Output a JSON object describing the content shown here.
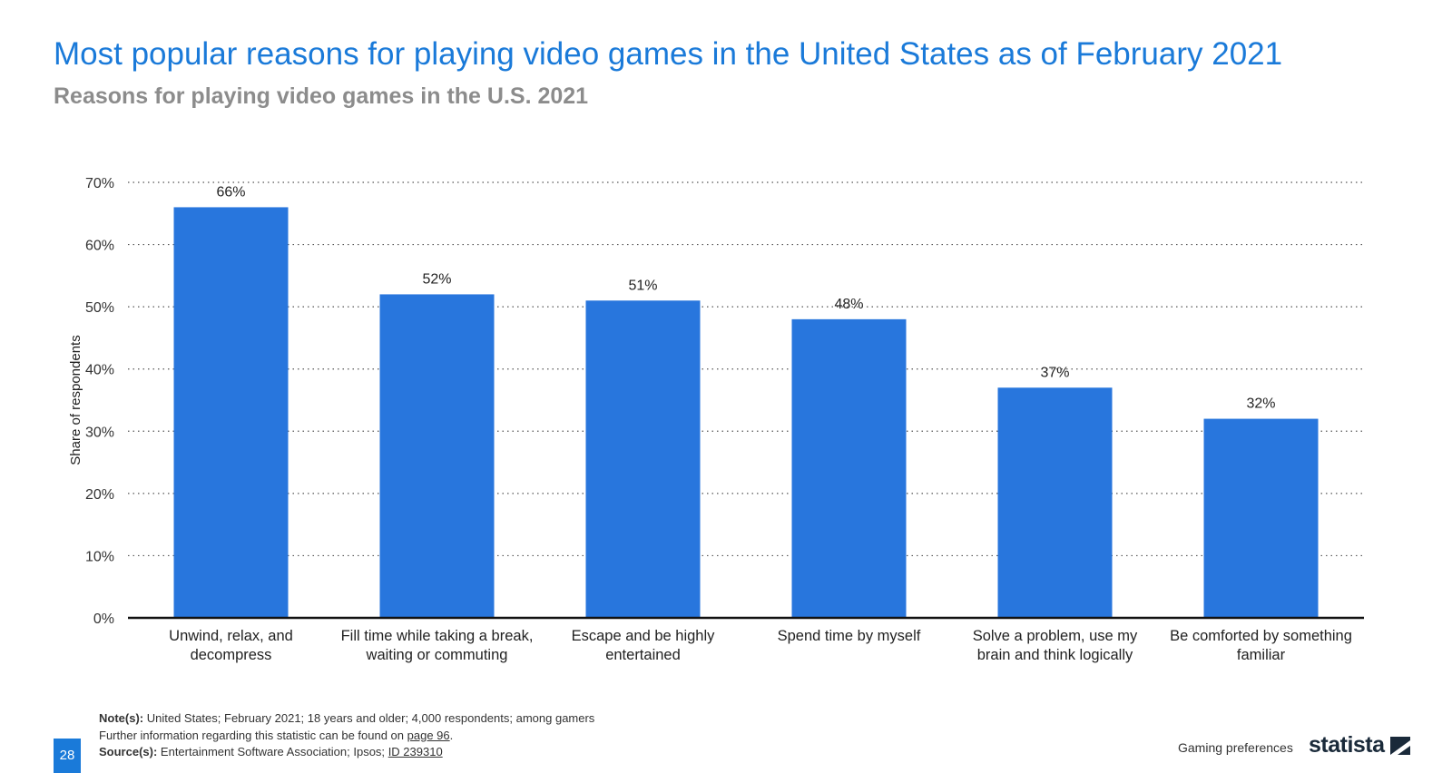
{
  "header": {
    "title": "Most popular reasons for playing video games in the United States as of February 2021",
    "subtitle": "Reasons for playing video games in the U.S. 2021"
  },
  "chart_data": {
    "type": "bar",
    "title": "Most popular reasons for playing video games in the United States as of February 2021",
    "subtitle": "Reasons for playing video games in the U.S. 2021",
    "xlabel": "",
    "ylabel": "Share of respondents",
    "categories": [
      [
        "Unwind, relax, and",
        "decompress"
      ],
      [
        "Fill time while taking a break,",
        "waiting or commuting"
      ],
      [
        "Escape and be highly",
        "entertained"
      ],
      [
        "Spend time by myself"
      ],
      [
        "Solve a problem, use my",
        "brain and think logically"
      ],
      [
        "Be comforted by something",
        "familiar"
      ]
    ],
    "values": [
      66,
      52,
      51,
      48,
      37,
      32
    ],
    "data_labels": [
      "66%",
      "52%",
      "51%",
      "48%",
      "37%",
      "32%"
    ],
    "ylim": [
      0,
      70
    ],
    "yticks": [
      0,
      10,
      20,
      30,
      40,
      50,
      60,
      70
    ],
    "ytick_labels": [
      "0%",
      "10%",
      "20%",
      "30%",
      "40%",
      "50%",
      "60%",
      "70%"
    ],
    "grid": true,
    "bar_color": "#2876dd"
  },
  "footer": {
    "note_label": "Note(s):",
    "note_text": "United States; February 2021; 18 years and older; 4,000 respondents; among gamers",
    "further_text": "Further information regarding this statistic can be found on",
    "further_link": "page 96",
    "further_end": ".",
    "source_label": "Source(s):",
    "source_text": "Entertainment Software Association; Ipsos;",
    "source_link": "ID 239310",
    "page_number": "28",
    "category": "Gaming preferences",
    "brand": "statista"
  },
  "colors": {
    "accent": "#1a7ad9",
    "bar": "#2876dd",
    "subtitle": "#8c8c8c"
  }
}
